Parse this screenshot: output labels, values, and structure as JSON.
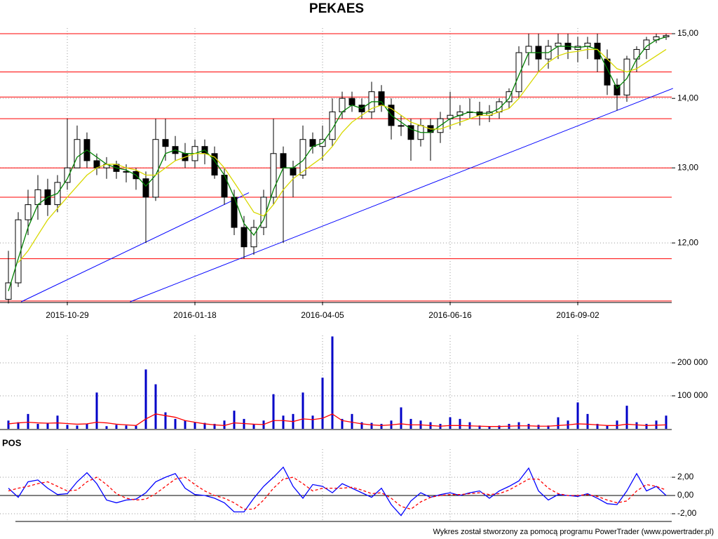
{
  "footer": "Wykres został stworzony za pomocą programu PowerTrader (www.powertrader.pl)",
  "chart_data": [
    {
      "type": "candlestick",
      "title": "PEKAES",
      "categories": [
        null,
        null,
        null,
        null,
        null,
        null,
        "2015-10-29",
        null,
        null,
        null,
        null,
        null,
        null,
        null,
        null,
        null,
        null,
        null,
        null,
        "2016-01-18",
        null,
        null,
        null,
        null,
        null,
        null,
        null,
        null,
        null,
        null,
        null,
        null,
        "2016-04-05",
        null,
        null,
        null,
        null,
        null,
        null,
        null,
        null,
        null,
        null,
        null,
        null,
        "2016-06-16",
        null,
        null,
        null,
        null,
        null,
        null,
        null,
        null,
        null,
        null,
        null,
        null,
        "2016-09-02",
        null,
        null,
        null,
        null,
        null,
        null,
        null,
        null,
        null
      ],
      "open": [
        11.3,
        11.5,
        12.3,
        12.5,
        12.7,
        12.5,
        12.8,
        13.0,
        13.4,
        13.1,
        13.0,
        13.05,
        12.95,
        12.95,
        12.85,
        12.6,
        13.4,
        13.3,
        13.2,
        13.1,
        13.3,
        13.2,
        12.9,
        12.6,
        12.2,
        11.95,
        12.2,
        12.6,
        13.2,
        13.0,
        12.9,
        13.4,
        13.3,
        13.4,
        13.8,
        14.0,
        13.9,
        13.8,
        14.1,
        13.9,
        13.6,
        13.6,
        13.4,
        13.6,
        13.5,
        13.7,
        13.75,
        13.8,
        13.8,
        13.75,
        13.8,
        13.95,
        14.1,
        14.7,
        14.8,
        14.6,
        14.8,
        14.85,
        14.75,
        14.8,
        14.85,
        14.6,
        14.2,
        14.05,
        14.6,
        14.75,
        14.9,
        14.95
      ],
      "high": [
        11.9,
        12.4,
        12.7,
        12.9,
        12.85,
        12.9,
        13.7,
        13.6,
        13.5,
        13.2,
        13.15,
        13.1,
        13.05,
        13.0,
        12.95,
        13.7,
        13.7,
        13.45,
        13.35,
        13.4,
        13.4,
        13.3,
        13.0,
        12.7,
        12.35,
        12.3,
        12.7,
        13.7,
        13.3,
        13.1,
        13.6,
        13.5,
        13.6,
        14.0,
        14.1,
        14.1,
        14.0,
        14.25,
        14.2,
        14.0,
        13.75,
        13.7,
        13.7,
        13.7,
        13.8,
        14.1,
        13.9,
        14.0,
        13.95,
        13.9,
        14.0,
        14.15,
        14.8,
        15.0,
        15.0,
        14.9,
        15.0,
        15.0,
        14.95,
        14.95,
        15.0,
        14.75,
        14.3,
        14.65,
        14.8,
        14.95,
        15.0,
        15.0
      ],
      "low": [
        11.25,
        11.45,
        12.1,
        12.3,
        12.35,
        12.4,
        12.7,
        13.0,
        13.0,
        12.9,
        12.85,
        12.85,
        12.8,
        12.7,
        12.0,
        12.55,
        13.1,
        13.1,
        13.0,
        13.0,
        13.05,
        12.85,
        12.5,
        12.1,
        11.8,
        11.85,
        12.1,
        12.5,
        12.0,
        12.6,
        12.85,
        13.2,
        13.1,
        13.3,
        13.7,
        13.8,
        13.7,
        13.7,
        13.8,
        13.4,
        13.45,
        13.1,
        13.3,
        13.1,
        13.35,
        13.55,
        13.6,
        13.7,
        13.6,
        13.65,
        13.7,
        13.85,
        14.0,
        14.5,
        14.4,
        14.45,
        14.6,
        14.6,
        14.55,
        14.6,
        14.4,
        14.05,
        13.82,
        13.95,
        14.4,
        14.6,
        14.85,
        14.9
      ],
      "close": [
        11.5,
        12.3,
        12.5,
        12.7,
        12.5,
        12.8,
        13.0,
        13.4,
        13.1,
        13.0,
        13.05,
        12.95,
        12.95,
        12.85,
        12.6,
        13.4,
        13.3,
        13.2,
        13.1,
        13.3,
        13.2,
        12.9,
        12.6,
        12.2,
        11.95,
        12.2,
        12.6,
        13.2,
        13.0,
        12.9,
        13.4,
        13.3,
        13.4,
        13.8,
        14.0,
        13.9,
        13.8,
        14.1,
        13.9,
        13.6,
        13.6,
        13.4,
        13.6,
        13.5,
        13.7,
        13.75,
        13.8,
        13.8,
        13.75,
        13.8,
        13.95,
        14.1,
        14.7,
        14.8,
        14.6,
        14.8,
        14.85,
        14.75,
        14.8,
        14.85,
        14.6,
        14.2,
        14.05,
        14.6,
        14.75,
        14.9,
        14.95,
        14.97
      ],
      "up_color": "#ffffff",
      "down_color": "#000000",
      "series": [
        {
          "color": "#008000",
          "values": [
            11.4,
            11.8,
            12.2,
            12.5,
            12.6,
            12.65,
            12.85,
            13.15,
            13.25,
            13.15,
            13.05,
            13.0,
            12.97,
            12.9,
            12.75,
            12.9,
            13.2,
            13.25,
            13.2,
            13.2,
            13.25,
            13.1,
            12.9,
            12.6,
            12.25,
            12.1,
            12.3,
            12.7,
            13.0,
            13.0,
            13.1,
            13.3,
            13.35,
            13.55,
            13.8,
            13.9,
            13.85,
            13.95,
            13.95,
            13.75,
            13.65,
            13.55,
            13.5,
            13.5,
            13.6,
            13.7,
            13.75,
            13.8,
            13.78,
            13.78,
            13.85,
            14.0,
            14.35,
            14.7,
            14.7,
            14.7,
            14.8,
            14.8,
            14.78,
            14.8,
            14.75,
            14.45,
            14.15,
            14.3,
            14.6,
            14.8,
            14.9,
            14.95
          ]
        },
        {
          "color": "#d8d800",
          "values": [
            null,
            11.75,
            11.9,
            12.1,
            12.3,
            12.45,
            12.6,
            12.75,
            12.9,
            13.0,
            13.05,
            13.05,
            13.0,
            12.97,
            12.9,
            12.9,
            13.0,
            13.1,
            13.15,
            13.2,
            13.2,
            13.15,
            13.0,
            12.8,
            12.6,
            12.4,
            12.35,
            12.5,
            12.7,
            12.85,
            12.95,
            13.05,
            13.15,
            13.3,
            13.5,
            13.65,
            13.75,
            13.85,
            13.9,
            13.85,
            13.75,
            13.65,
            13.6,
            13.55,
            13.55,
            13.6,
            13.65,
            13.7,
            13.75,
            13.75,
            13.8,
            13.85,
            14.0,
            14.2,
            14.4,
            14.55,
            14.65,
            14.7,
            14.72,
            14.75,
            14.75,
            14.6,
            14.45,
            14.4,
            14.45,
            14.55,
            14.65,
            14.75
          ]
        }
      ],
      "levels": {
        "color": "#ff0000",
        "values": [
          15.0,
          14.4,
          14.02,
          13.7,
          13.0,
          12.6,
          11.8,
          11.28
        ]
      },
      "trendlines": {
        "color": "#0000ff",
        "lines": [
          {
            "x": [
              1.3,
              24.5
            ],
            "y": [
              11.27,
              12.66
            ]
          },
          {
            "x": [
              12.4,
              67.7
            ],
            "y": [
              11.27,
              14.15
            ]
          }
        ]
      },
      "log": true,
      "ylim": [
        11.27,
        15.09
      ],
      "yticks": [
        {
          "value": 12,
          "label": "12,00"
        },
        {
          "value": 13,
          "label": "13,00"
        },
        {
          "value": 14,
          "label": "14,00"
        },
        {
          "value": 15,
          "label": "15,00"
        }
      ],
      "grid": true
    },
    {
      "type": "bar",
      "color": "#0000c8",
      "values": [
        25000,
        20000,
        45000,
        15000,
        18000,
        40000,
        12000,
        10000,
        15000,
        110000,
        8000,
        12000,
        10000,
        9000,
        180000,
        135000,
        50000,
        30000,
        25000,
        20000,
        18000,
        15000,
        25000,
        55000,
        30000,
        15000,
        25000,
        105000,
        40000,
        45000,
        110000,
        40000,
        155000,
        280000,
        30000,
        45000,
        20000,
        18000,
        15000,
        25000,
        65000,
        30000,
        25000,
        20000,
        15000,
        35000,
        30000,
        20000,
        10000,
        8000,
        10000,
        15000,
        20000,
        15000,
        12000,
        10000,
        35000,
        25000,
        80000,
        45000,
        15000,
        10000,
        25000,
        70000,
        20000,
        15000,
        25000,
        40000
      ],
      "series": [
        {
          "color": "#ff0000",
          "values": [
            15000,
            18000,
            20000,
            18000,
            17000,
            18000,
            16000,
            14000,
            15000,
            20000,
            18000,
            14000,
            12000,
            10000,
            30000,
            45000,
            40000,
            35000,
            25000,
            20000,
            15000,
            12000,
            10000,
            18000,
            16000,
            14000,
            13000,
            25000,
            25000,
            22000,
            30000,
            28000,
            32000,
            45000,
            25000,
            20000,
            15000,
            12000,
            10000,
            12000,
            15000,
            12000,
            12000,
            10000,
            8000,
            10000,
            10000,
            9000,
            8000,
            7000,
            7000,
            8000,
            9000,
            9000,
            8000,
            8000,
            10000,
            12000,
            15000,
            14000,
            12000,
            10000,
            10000,
            14000,
            12000,
            10000,
            11000,
            12000
          ]
        }
      ],
      "ylim": [
        0,
        283000
      ],
      "yticks": [
        {
          "value": 100000,
          "label": "100 000"
        },
        {
          "value": 200000,
          "label": "200 000"
        }
      ],
      "grid": true
    },
    {
      "type": "line",
      "title": "POS",
      "series": [
        {
          "color": "#0000ff",
          "style": "solid",
          "values": [
            0.8,
            -0.2,
            1.5,
            1.7,
            0.8,
            0.1,
            0.2,
            1.5,
            2.5,
            1.3,
            -0.5,
            -0.8,
            -0.5,
            -0.4,
            0.3,
            1.5,
            2.0,
            2.4,
            0.8,
            0.1,
            0.0,
            -0.3,
            -0.8,
            -1.8,
            -1.8,
            -0.3,
            1.0,
            2.0,
            3.1,
            1.0,
            -0.3,
            1.2,
            1.0,
            0.3,
            1.3,
            0.8,
            0.3,
            -0.2,
            0.8,
            -1.0,
            -2.2,
            -0.6,
            0.3,
            -0.2,
            0.1,
            0.3,
            0.0,
            0.3,
            0.5,
            -0.3,
            0.5,
            1.0,
            1.6,
            3.0,
            0.5,
            -0.5,
            0.1,
            0.0,
            -0.1,
            0.2,
            -0.3,
            -0.9,
            -1.0,
            0.5,
            2.4,
            0.5,
            1.0,
            0.0
          ]
        },
        {
          "color": "#ff0000",
          "style": "dashed",
          "values": [
            0.5,
            0.8,
            1.0,
            1.3,
            1.5,
            1.0,
            0.5,
            0.6,
            1.5,
            2.0,
            1.2,
            0.2,
            -0.3,
            -0.5,
            -0.4,
            0.2,
            1.0,
            1.8,
            2.0,
            1.2,
            0.5,
            0.0,
            -0.3,
            -0.8,
            -1.5,
            -1.5,
            -0.5,
            0.8,
            1.8,
            2.0,
            1.3,
            0.5,
            0.8,
            0.8,
            0.8,
            0.9,
            0.6,
            0.2,
            0.3,
            -0.3,
            -1.2,
            -1.5,
            -0.7,
            -0.2,
            0.0,
            0.1,
            0.1,
            0.2,
            0.3,
            0.1,
            0.2,
            0.6,
            1.2,
            1.8,
            1.8,
            0.8,
            0.2,
            0.0,
            0.0,
            0.1,
            -0.1,
            -0.5,
            -0.8,
            -0.6,
            0.5,
            1.2,
            1.0,
            0.6
          ]
        }
      ],
      "ylim": [
        -2.77,
        5.08
      ],
      "yticks": [
        {
          "value": -2,
          "label": "-2,00"
        },
        {
          "value": 0,
          "label": "0,00"
        },
        {
          "value": 2,
          "label": "2,00"
        }
      ],
      "zero_line": true,
      "grid": true
    }
  ]
}
